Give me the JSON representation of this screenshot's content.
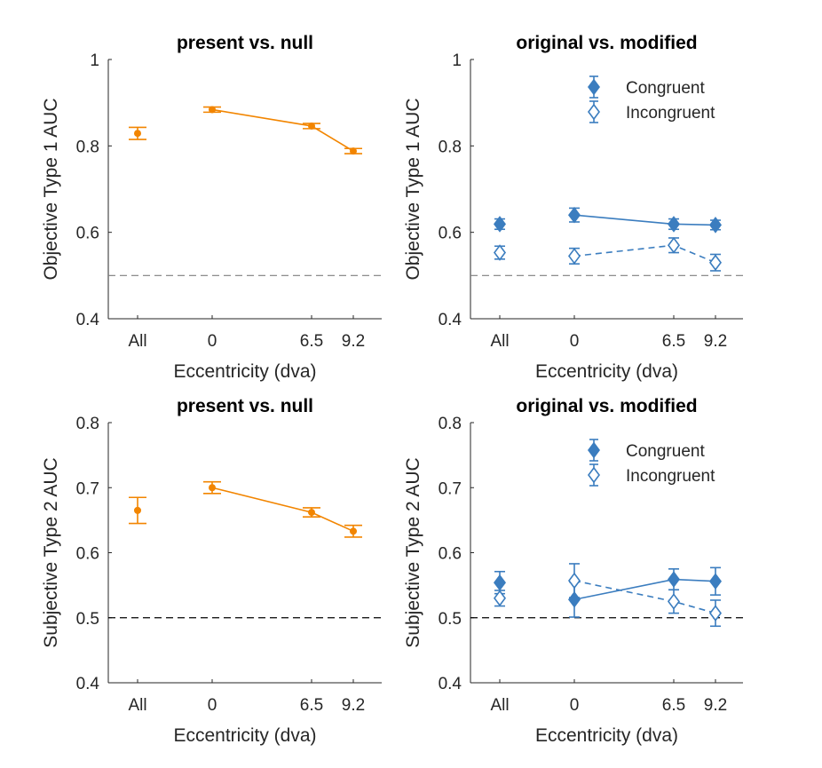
{
  "colors": {
    "orange": "#F28500",
    "blue": "#3B7DBF",
    "axis": "#262626",
    "ref_line_top": "#7f7f7f",
    "ref_line_bottom": "#000000"
  },
  "chart_data": [
    {
      "type": "line",
      "title": "present vs. null",
      "xlabel": "Eccentricity (dva)",
      "ylabel": "Objective Type 1 AUC",
      "ylim": [
        0.4,
        1.0
      ],
      "yticks": [
        "0.4",
        "0.6",
        "0.8",
        "1"
      ],
      "xticks": [
        "All",
        "0",
        "6.5",
        "9.2"
      ],
      "reference_line": 0.5,
      "legend": null,
      "series": [
        {
          "color": "orange",
          "marker": "dot",
          "filled": true,
          "points": [
            {
              "x": "All",
              "y": 0.829,
              "err": 0.014,
              "connected": false
            },
            {
              "x": "0",
              "y": 0.884,
              "err": 0.006,
              "connected": true
            },
            {
              "x": "6.5",
              "y": 0.846,
              "err": 0.006,
              "connected": true
            },
            {
              "x": "9.2",
              "y": 0.788,
              "err": 0.006,
              "connected": true
            }
          ]
        }
      ]
    },
    {
      "type": "line",
      "title": "original vs. modified",
      "xlabel": "Eccentricity (dva)",
      "ylabel": "Objective Type 1 AUC",
      "ylim": [
        0.4,
        1.0
      ],
      "yticks": [
        "0.4",
        "0.6",
        "0.8",
        "1"
      ],
      "xticks": [
        "All",
        "0",
        "6.5",
        "9.2"
      ],
      "reference_line": 0.5,
      "legend": "top-right",
      "series": [
        {
          "name": "Congruent",
          "color": "blue",
          "marker": "diamond",
          "filled": true,
          "dash": false,
          "points": [
            {
              "x": "All",
              "y": 0.619,
              "err": 0.012,
              "connected": false
            },
            {
              "x": "0",
              "y": 0.64,
              "err": 0.016,
              "connected": true
            },
            {
              "x": "6.5",
              "y": 0.619,
              "err": 0.012,
              "connected": true
            },
            {
              "x": "9.2",
              "y": 0.617,
              "err": 0.011,
              "connected": true
            }
          ]
        },
        {
          "name": "Incongruent",
          "color": "blue",
          "marker": "diamond",
          "filled": false,
          "dash": true,
          "points": [
            {
              "x": "All",
              "y": 0.553,
              "err": 0.015,
              "connected": false
            },
            {
              "x": "0",
              "y": 0.545,
              "err": 0.018,
              "connected": true
            },
            {
              "x": "6.5",
              "y": 0.57,
              "err": 0.017,
              "connected": true
            },
            {
              "x": "9.2",
              "y": 0.53,
              "err": 0.019,
              "connected": true
            }
          ]
        }
      ]
    },
    {
      "type": "line",
      "title": "present vs. null",
      "xlabel": "Eccentricity (dva)",
      "ylabel": "Subjective Type 2 AUC",
      "ylim": [
        0.4,
        0.8
      ],
      "yticks": [
        "0.4",
        "0.5",
        "0.6",
        "0.7",
        "0.8"
      ],
      "xticks": [
        "All",
        "0",
        "6.5",
        "9.2"
      ],
      "reference_line": 0.5,
      "legend": null,
      "series": [
        {
          "color": "orange",
          "marker": "dot",
          "filled": true,
          "points": [
            {
              "x": "All",
              "y": 0.665,
              "err": 0.02,
              "connected": false
            },
            {
              "x": "0",
              "y": 0.7,
              "err": 0.009,
              "connected": true
            },
            {
              "x": "6.5",
              "y": 0.662,
              "err": 0.007,
              "connected": true
            },
            {
              "x": "9.2",
              "y": 0.633,
              "err": 0.009,
              "connected": true
            }
          ]
        }
      ]
    },
    {
      "type": "line",
      "title": "original vs. modified",
      "xlabel": "Eccentricity (dva)",
      "ylabel": "Subjective Type 2 AUC",
      "ylim": [
        0.4,
        0.8
      ],
      "yticks": [
        "0.4",
        "0.5",
        "0.6",
        "0.7",
        "0.8"
      ],
      "xticks": [
        "All",
        "0",
        "6.5",
        "9.2"
      ],
      "reference_line": 0.5,
      "legend": "top-right",
      "series": [
        {
          "name": "Congruent",
          "color": "blue",
          "marker": "diamond",
          "filled": true,
          "dash": false,
          "points": [
            {
              "x": "All",
              "y": 0.554,
              "err": 0.017,
              "connected": false
            },
            {
              "x": "0",
              "y": 0.528,
              "err": 0.027,
              "connected": true
            },
            {
              "x": "6.5",
              "y": 0.559,
              "err": 0.016,
              "connected": true
            },
            {
              "x": "9.2",
              "y": 0.556,
              "err": 0.021,
              "connected": true
            }
          ]
        },
        {
          "name": "Incongruent",
          "color": "blue",
          "marker": "diamond",
          "filled": false,
          "dash": true,
          "points": [
            {
              "x": "All",
              "y": 0.53,
              "err": 0.012,
              "connected": false
            },
            {
              "x": "0",
              "y": 0.557,
              "err": 0.026,
              "connected": true
            },
            {
              "x": "6.5",
              "y": 0.525,
              "err": 0.018,
              "connected": true
            },
            {
              "x": "9.2",
              "y": 0.507,
              "err": 0.02,
              "connected": true
            }
          ]
        }
      ]
    }
  ]
}
